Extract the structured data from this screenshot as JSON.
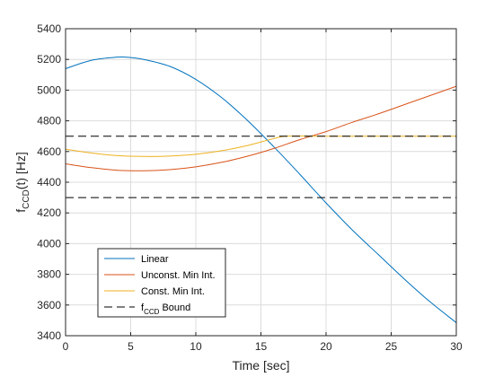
{
  "chart_data": {
    "type": "line",
    "title": "",
    "xlabel": "Time [sec]",
    "ylabel": {
      "base": "f",
      "sub": "CCD",
      "rest": "(t) [Hz]"
    },
    "xlim": [
      0,
      30
    ],
    "ylim": [
      3400,
      5400
    ],
    "xticks": [
      0,
      5,
      10,
      15,
      20,
      25,
      30
    ],
    "yticks": [
      3400,
      3600,
      3800,
      4000,
      4200,
      4400,
      4600,
      4800,
      5000,
      5200,
      5400
    ],
    "grid": true,
    "legend_position": "bottom-left",
    "series": [
      {
        "name": "Linear",
        "color": "#0072BD",
        "dash": "solid",
        "x": [
          0,
          2,
          4,
          5,
          6,
          8,
          10,
          12,
          14,
          16,
          18,
          20,
          22,
          24,
          26,
          28,
          30
        ],
        "y": [
          5140,
          5195,
          5215,
          5212,
          5200,
          5155,
          5070,
          4950,
          4800,
          4630,
          4450,
          4265,
          4090,
          3930,
          3770,
          3620,
          3485
        ]
      },
      {
        "name": "Unconst. Min Int.",
        "color": "#D95319",
        "dash": "solid",
        "x": [
          0,
          2,
          4,
          6,
          8,
          10,
          12,
          14,
          16,
          18,
          20,
          22,
          24,
          26,
          28,
          30
        ],
        "y": [
          4520,
          4495,
          4478,
          4475,
          4482,
          4500,
          4530,
          4570,
          4620,
          4678,
          4730,
          4790,
          4845,
          4905,
          4965,
          5025
        ]
      },
      {
        "name": "Const. Min Int.",
        "color": "#EDB120",
        "dash": "solid",
        "x": [
          0,
          2,
          4,
          6,
          8,
          10,
          12,
          14,
          16,
          17,
          20,
          25,
          30
        ],
        "y": [
          4615,
          4590,
          4573,
          4568,
          4570,
          4582,
          4605,
          4640,
          4685,
          4700,
          4700,
          4700,
          4700
        ]
      },
      {
        "name": {
          "base": "f",
          "sub": "CCD",
          "rest": " Bound"
        },
        "color": "#000000",
        "dash": "dashed",
        "x": [
          0,
          30
        ],
        "y": [
          4700,
          4700
        ]
      },
      {
        "name": "",
        "color": "#000000",
        "dash": "dashed",
        "x": [
          0,
          30
        ],
        "y": [
          4300,
          4300
        ]
      }
    ]
  }
}
